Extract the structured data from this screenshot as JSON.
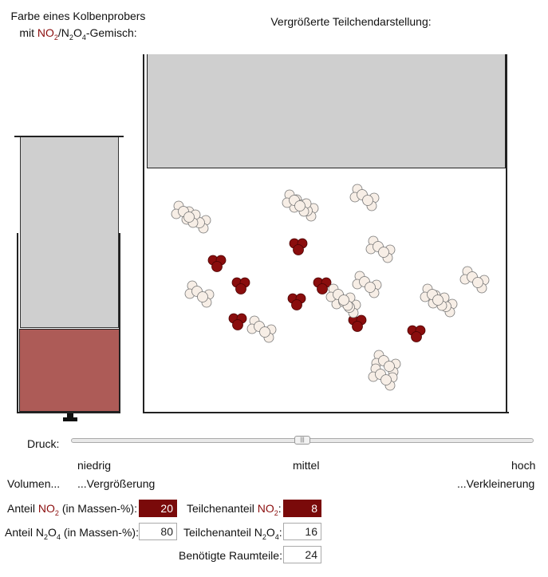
{
  "titles": {
    "left_line1": "Farbe eines Kolbenprobers",
    "left_line2_prefix": "mit ",
    "left_no": "NO",
    "left_no_sub": "2",
    "left_slash": "/N",
    "left_n_sub": "2",
    "left_o": "O",
    "left_o_sub": "4",
    "left_suffix": "-Gemisch:",
    "right": "Vergrößerte Teilchendarstellung:"
  },
  "colors": {
    "no2_gas": "#ad5b57",
    "no2_particle": "#8a0d0d",
    "n2o4_particle": "#f7eee6",
    "plunger": "#cfcfcf"
  },
  "slider": {
    "label": "Druck:",
    "value_percent": 50,
    "low": "niedrig",
    "mid": "mittel",
    "high": "hoch",
    "volume_label": "Volumen...",
    "volume_left": "...Vergrößerung",
    "volume_right": "...Verkleinerung"
  },
  "particles": {
    "no2_count": 8,
    "n2o4_count": 16
  },
  "data": {
    "anteil_no2_a": "Anteil ",
    "anteil_no2_red": "NO",
    "anteil_no2_sub": "2",
    "anteil_no2_b": " (in Massen-%):",
    "anteil_no2_value": "20",
    "anteil_n2o4_a": "Anteil N",
    "anteil_n2o4_sub1": "2",
    "anteil_n2o4_mid": "O",
    "anteil_n2o4_sub2": "4",
    "anteil_n2o4_b": " (in Massen-%):",
    "anteil_n2o4_value": "80",
    "tc_no2_a": "Teilchenanteil ",
    "tc_no2_red": "NO",
    "tc_no2_sub": "2",
    "tc_no2_b": ":",
    "tc_no2_value": "8",
    "tc_n2o4_a": "Teilchenanteil N",
    "tc_n2o4_sub1": "2",
    "tc_n2o4_mid": "O",
    "tc_n2o4_sub2": "4",
    "tc_n2o4_b": ":",
    "tc_n2o4_value": "16",
    "raum_label": "Benötigte Raumteile:",
    "raum_value": "24"
  }
}
